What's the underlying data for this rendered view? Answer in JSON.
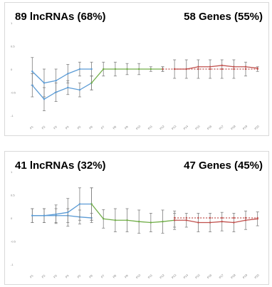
{
  "chart_data": [
    {
      "type": "line",
      "title_left": "89 lncRNAs (68%)",
      "title_right": "58 Genes (55%)",
      "x": [
        "P1",
        "P2",
        "P3",
        "P4",
        "P5",
        "P6",
        "P7",
        "P8",
        "P9",
        "P10",
        "P11",
        "P12",
        "P13",
        "P14",
        "P15",
        "P16",
        "P17",
        "P18",
        "P19",
        "P20"
      ],
      "y_ticks": [
        1.0,
        0.5,
        0,
        -0.5,
        -1.0
      ],
      "ylim": [
        -1.0,
        1.0
      ],
      "series": [
        {
          "values": [
            -0.05,
            -0.3,
            -0.25,
            -0.1,
            0.0,
            0.0,
            null,
            null,
            null,
            null,
            null,
            null,
            null,
            null,
            null,
            null,
            null,
            null,
            null,
            null
          ],
          "errors": [
            0.3,
            0.3,
            0.25,
            0.2,
            0.15,
            0.15,
            null,
            null,
            null,
            null,
            null,
            null,
            null,
            null,
            null,
            null,
            null,
            null,
            null,
            null
          ],
          "color": "#5b9bd5",
          "dashed": false
        },
        {
          "values": [
            -0.35,
            -0.65,
            -0.5,
            -0.4,
            -0.45,
            -0.3,
            null,
            null,
            null,
            null,
            null,
            null,
            null,
            null,
            null,
            null,
            null,
            null,
            null,
            null
          ],
          "errors": [
            0.25,
            0.25,
            0.2,
            0.15,
            0.15,
            0.15,
            null,
            null,
            null,
            null,
            null,
            null,
            null,
            null,
            null,
            null,
            null,
            null,
            null,
            null
          ],
          "color": "#5b9bd5",
          "dashed": false
        },
        {
          "values": [
            null,
            null,
            null,
            null,
            null,
            -0.3,
            0.0,
            0.0,
            0.0,
            0.0,
            0.0,
            0.0,
            null,
            null,
            null,
            null,
            null,
            null,
            null,
            null
          ],
          "errors": [
            null,
            null,
            null,
            null,
            null,
            0.15,
            0.15,
            0.15,
            0.12,
            0.12,
            0.05,
            0.05,
            null,
            null,
            null,
            null,
            null,
            null,
            null,
            null
          ],
          "color": "#70ad47",
          "dashed": false
        },
        {
          "values": [
            null,
            null,
            null,
            null,
            null,
            null,
            null,
            null,
            null,
            null,
            null,
            0.0,
            0.0,
            0.0,
            0.0,
            0.0,
            0.0,
            0.0,
            0.0,
            0.0
          ],
          "errors": [
            null,
            null,
            null,
            null,
            null,
            null,
            null,
            null,
            null,
            null,
            null,
            0.05,
            0.2,
            0.2,
            0.2,
            0.2,
            0.2,
            0.2,
            0.15,
            0.05
          ],
          "color": "#c0504d",
          "dashed": true
        },
        {
          "values": [
            null,
            null,
            null,
            null,
            null,
            null,
            null,
            null,
            null,
            null,
            null,
            null,
            0.0,
            0.0,
            0.05,
            0.05,
            0.08,
            0.05,
            0.05,
            0.02
          ],
          "errors": [
            null,
            null,
            null,
            null,
            null,
            null,
            null,
            null,
            null,
            null,
            null,
            null,
            null,
            null,
            null,
            null,
            null,
            null,
            null,
            null
          ],
          "color": "#c0504d",
          "dashed": false
        }
      ]
    },
    {
      "type": "line",
      "title_left": "41 lncRNAs (32%)",
      "title_right": "47 Genes (45%)",
      "x": [
        "P1",
        "P2",
        "P3",
        "P4",
        "P5",
        "P6",
        "P7",
        "P8",
        "P9",
        "P10",
        "P11",
        "P12",
        "P13",
        "P14",
        "P15",
        "P16",
        "P17",
        "P18",
        "P19",
        "P20"
      ],
      "y_ticks": [
        1.0,
        0.5,
        0,
        -0.5,
        -1.0
      ],
      "ylim": [
        -1.0,
        1.0
      ],
      "series": [
        {
          "values": [
            0.05,
            0.05,
            0.05,
            0.05,
            0.02,
            0.0,
            null,
            null,
            null,
            null,
            null,
            null,
            null,
            null,
            null,
            null,
            null,
            null,
            null,
            null
          ],
          "errors": [
            0.15,
            0.15,
            0.15,
            0.15,
            0.15,
            0.1,
            null,
            null,
            null,
            null,
            null,
            null,
            null,
            null,
            null,
            null,
            null,
            null,
            null,
            null
          ],
          "color": "#5b9bd5",
          "dashed": false
        },
        {
          "values": [
            0.05,
            0.05,
            0.08,
            0.12,
            0.3,
            0.3,
            null,
            null,
            null,
            null,
            null,
            null,
            null,
            null,
            null,
            null,
            null,
            null,
            null,
            null
          ],
          "errors": [
            0.15,
            0.15,
            0.2,
            0.3,
            0.35,
            0.35,
            null,
            null,
            null,
            null,
            null,
            null,
            null,
            null,
            null,
            null,
            null,
            null,
            null,
            null
          ],
          "color": "#5b9bd5",
          "dashed": false
        },
        {
          "values": [
            null,
            null,
            null,
            null,
            null,
            0.3,
            -0.02,
            -0.05,
            -0.05,
            -0.08,
            -0.1,
            -0.08,
            -0.05,
            null,
            null,
            null,
            null,
            null,
            null,
            null
          ],
          "errors": [
            null,
            null,
            null,
            null,
            null,
            0.35,
            0.2,
            0.25,
            0.25,
            0.25,
            0.2,
            0.25,
            0.2,
            null,
            null,
            null,
            null,
            null,
            null,
            null
          ],
          "color": "#70ad47",
          "dashed": false
        },
        {
          "values": [
            null,
            null,
            null,
            null,
            null,
            null,
            null,
            null,
            null,
            null,
            null,
            null,
            -0.05,
            -0.05,
            -0.1,
            -0.1,
            -0.08,
            -0.1,
            -0.05,
            -0.02
          ],
          "errors": [
            null,
            null,
            null,
            null,
            null,
            null,
            null,
            null,
            null,
            null,
            null,
            null,
            0.15,
            0.15,
            0.2,
            0.2,
            0.2,
            0.2,
            0.2,
            0.15
          ],
          "color": "#c0504d",
          "dashed": false
        },
        {
          "values": [
            null,
            null,
            null,
            null,
            null,
            null,
            null,
            null,
            null,
            null,
            null,
            null,
            0.0,
            0.0,
            0.0,
            0.0,
            0.0,
            0.0,
            0.0,
            0.0
          ],
          "errors": [
            null,
            null,
            null,
            null,
            null,
            null,
            null,
            null,
            null,
            null,
            null,
            null,
            null,
            null,
            null,
            null,
            null,
            null,
            null,
            null
          ],
          "color": "#c0504d",
          "dashed": true
        }
      ]
    }
  ],
  "tick_label_color": "#7f7f7f",
  "error_bar_color": "#7f7f7f",
  "title_color": "#000000"
}
